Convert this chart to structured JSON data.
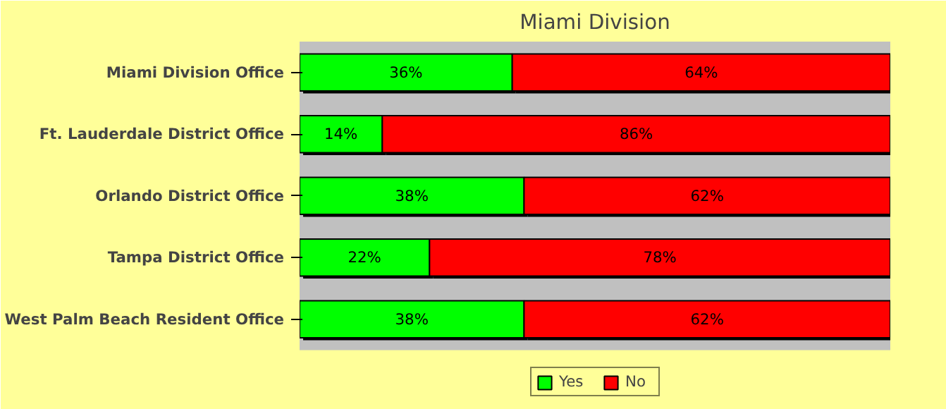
{
  "chart_data": {
    "type": "bar",
    "orientation": "horizontal",
    "stacked": true,
    "title": "Miami Division",
    "categories": [
      "Miami Division Office",
      "Ft. Lauderdale District Office",
      "Orlando District Office",
      "Tampa District Office",
      "West Palm Beach Resident Office"
    ],
    "xlim": [
      0,
      100
    ],
    "tick_labels": "y",
    "legend": "bottom",
    "series": [
      {
        "name": "Yes",
        "color": "#00ff00",
        "values": [
          36,
          14,
          38,
          22,
          38
        ],
        "value_labels": [
          "36%",
          "14%",
          "38%",
          "22%",
          "38%"
        ]
      },
      {
        "name": "No",
        "color": "#ff0000",
        "values": [
          64,
          86,
          62,
          78,
          62
        ],
        "value_labels": [
          "64%",
          "86%",
          "62%",
          "78%",
          "62%"
        ]
      }
    ]
  }
}
